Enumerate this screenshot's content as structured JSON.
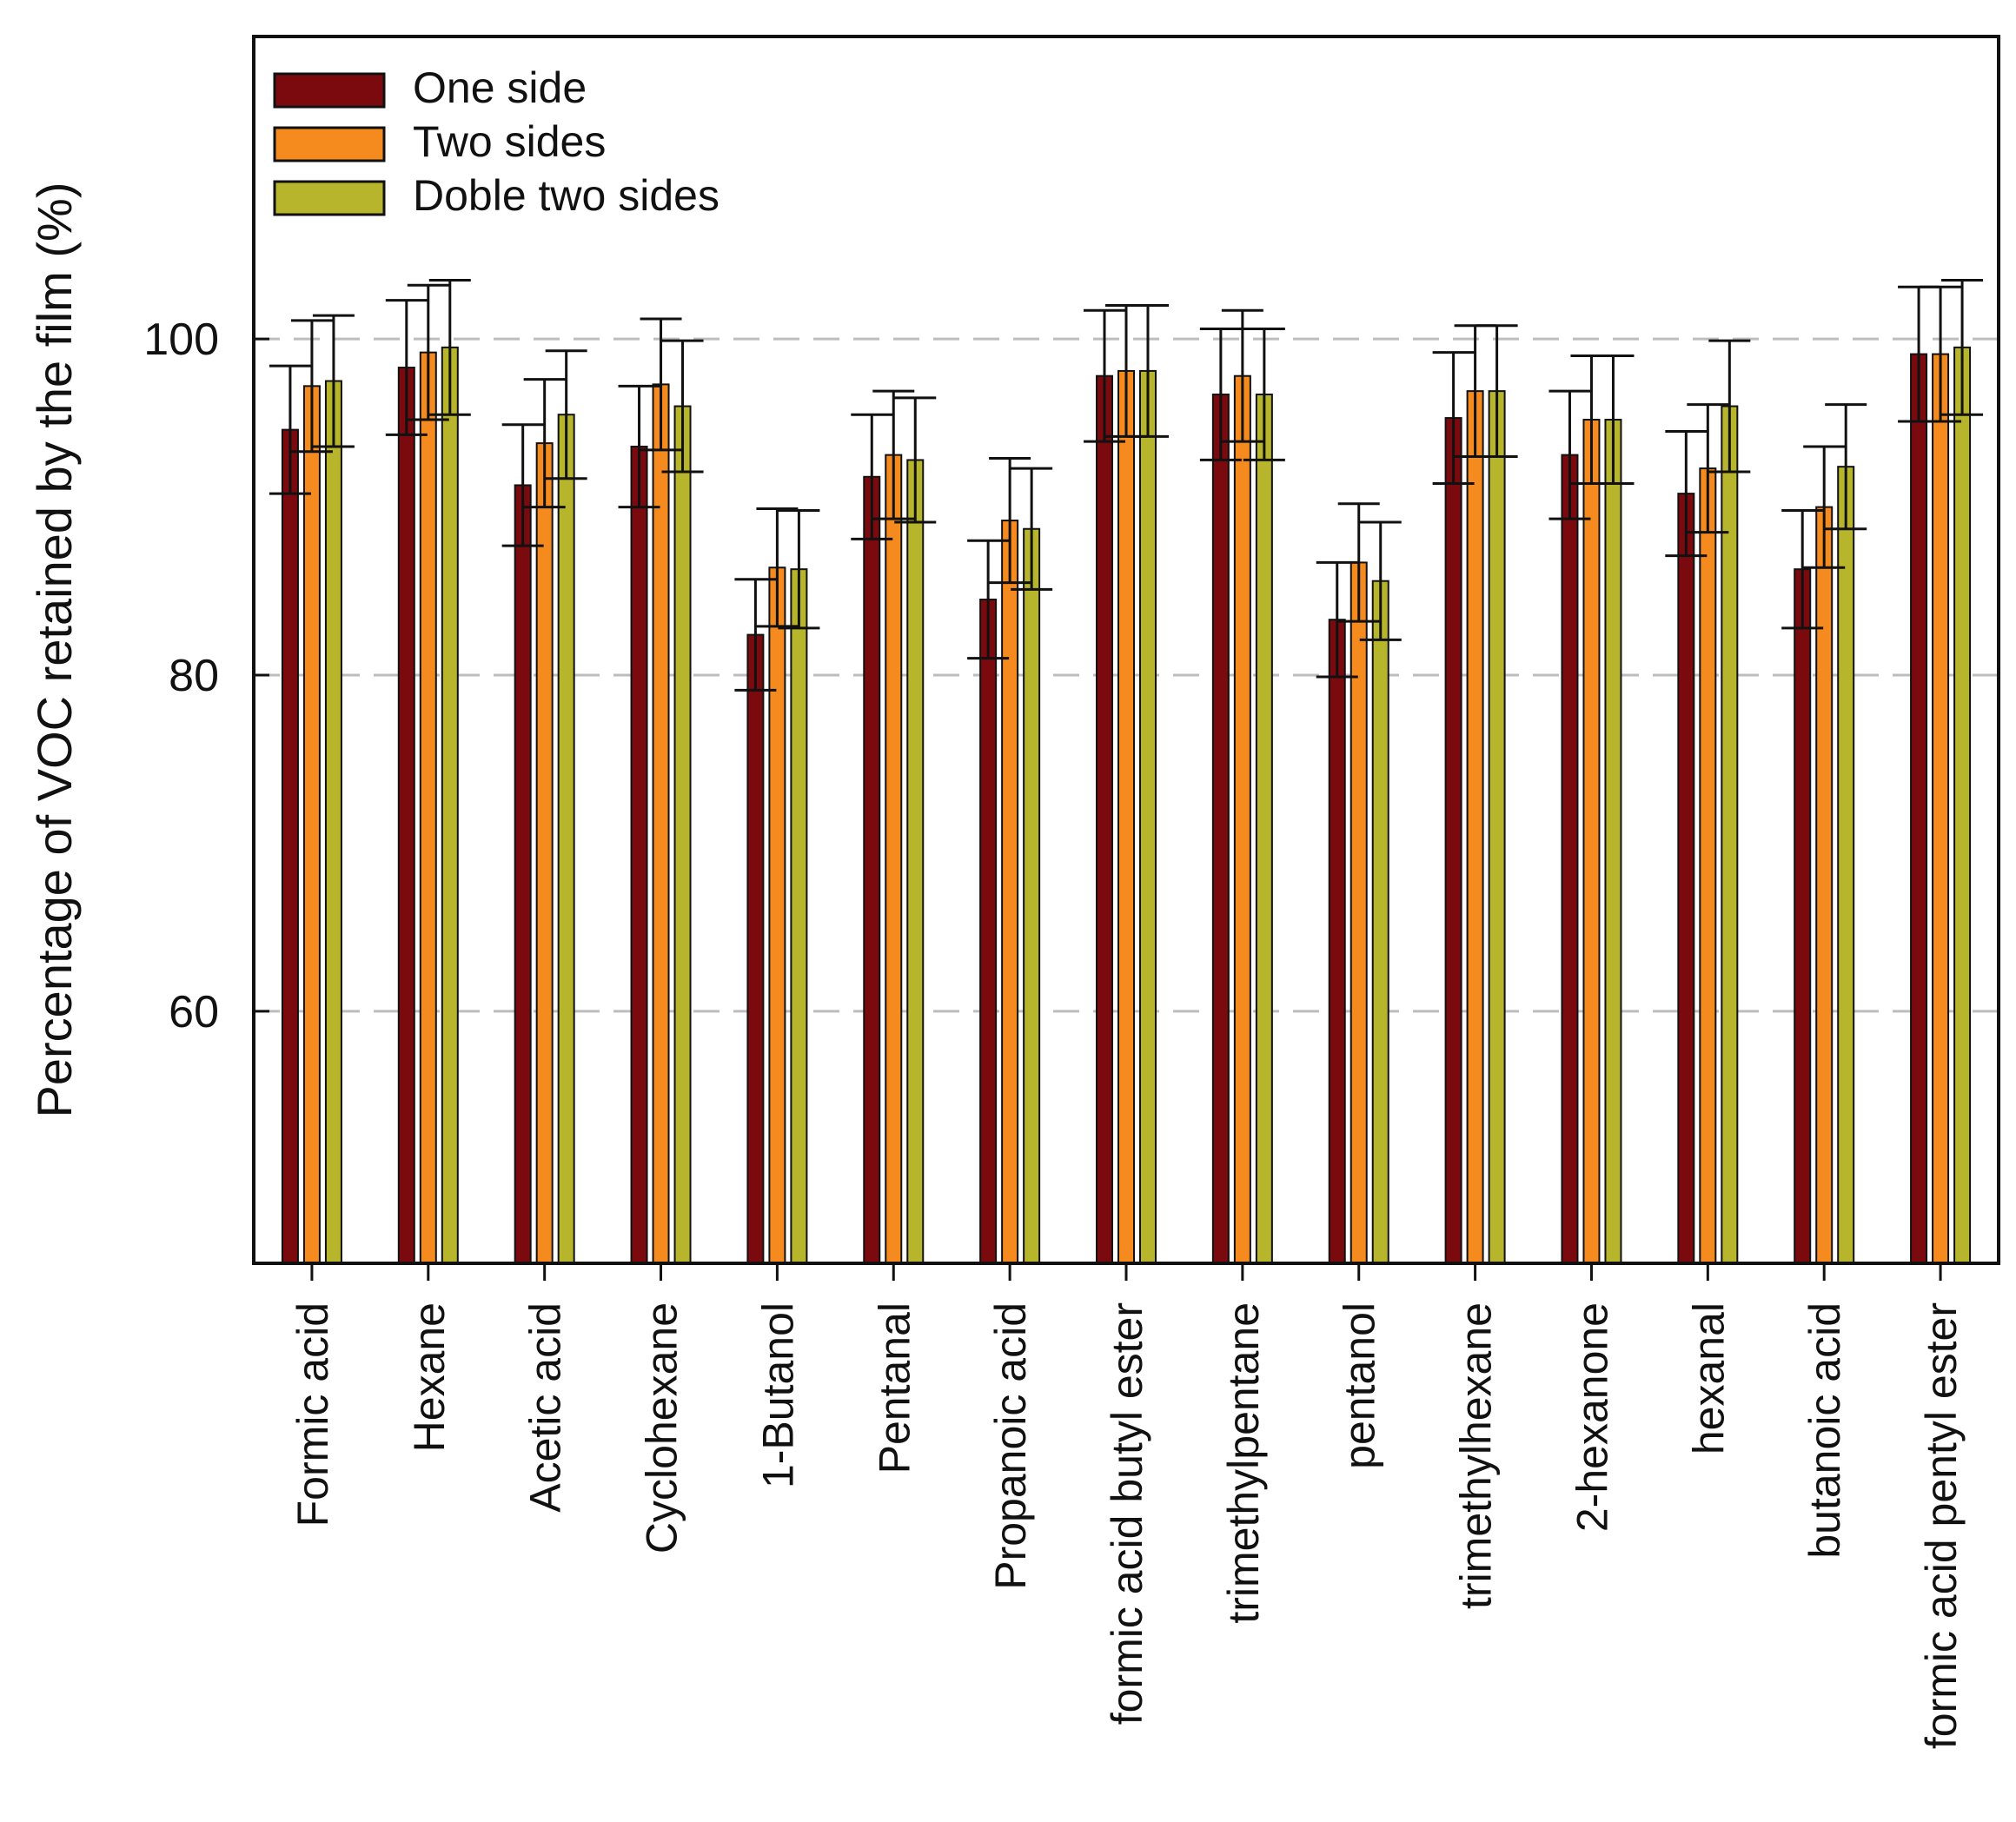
{
  "chart_data": {
    "type": "bar",
    "title": "",
    "xlabel": "",
    "ylabel": "Percentage of VOC retained by the film (%)",
    "ylim": [
      45,
      118
    ],
    "yticks": [
      60,
      80,
      100
    ],
    "grid": "dashed horizontal at y ticks",
    "legend_position": "top-left",
    "categories": [
      "Formic acid",
      "Hexane",
      "Acetic acid",
      "Cyclohexane",
      "1-Butanol",
      "Pentanal",
      "Propanoic acid",
      "formic acid butyl ester",
      "trimethylpentane",
      "pentanol",
      "trimethylhexane",
      "2-hexanone",
      "hexanal",
      "butanoic acid",
      "formic acid pentyl ester"
    ],
    "series": [
      {
        "name": "One side",
        "color": "#7b0a0f",
        "values": [
          94.6,
          98.3,
          91.3,
          93.6,
          82.4,
          91.8,
          84.5,
          97.8,
          96.7,
          83.3,
          95.3,
          93.1,
          90.8,
          86.3,
          99.1
        ],
        "errors": [
          3.8,
          4.0,
          3.6,
          3.6,
          3.3,
          3.7,
          3.5,
          3.9,
          3.9,
          3.4,
          3.9,
          3.8,
          3.7,
          3.5,
          4.0
        ]
      },
      {
        "name": "Two sides",
        "color": "#f58a1f",
        "values": [
          97.2,
          99.2,
          93.8,
          97.3,
          86.4,
          93.1,
          89.2,
          98.1,
          97.8,
          86.7,
          96.9,
          95.2,
          92.3,
          90.0,
          99.1
        ],
        "errors": [
          3.9,
          4.0,
          3.8,
          3.9,
          3.5,
          3.8,
          3.7,
          3.9,
          3.9,
          3.5,
          3.9,
          3.8,
          3.8,
          3.6,
          4.0
        ]
      },
      {
        "name": "Doble two sides",
        "color": "#b7b52c",
        "values": [
          97.5,
          99.5,
          95.5,
          96.0,
          86.3,
          92.8,
          88.7,
          98.1,
          96.7,
          85.6,
          96.9,
          95.2,
          96.0,
          92.4,
          99.5
        ],
        "errors": [
          3.9,
          4.0,
          3.8,
          3.9,
          3.5,
          3.7,
          3.6,
          3.9,
          3.9,
          3.5,
          3.9,
          3.8,
          3.9,
          3.7,
          4.0
        ]
      }
    ]
  }
}
